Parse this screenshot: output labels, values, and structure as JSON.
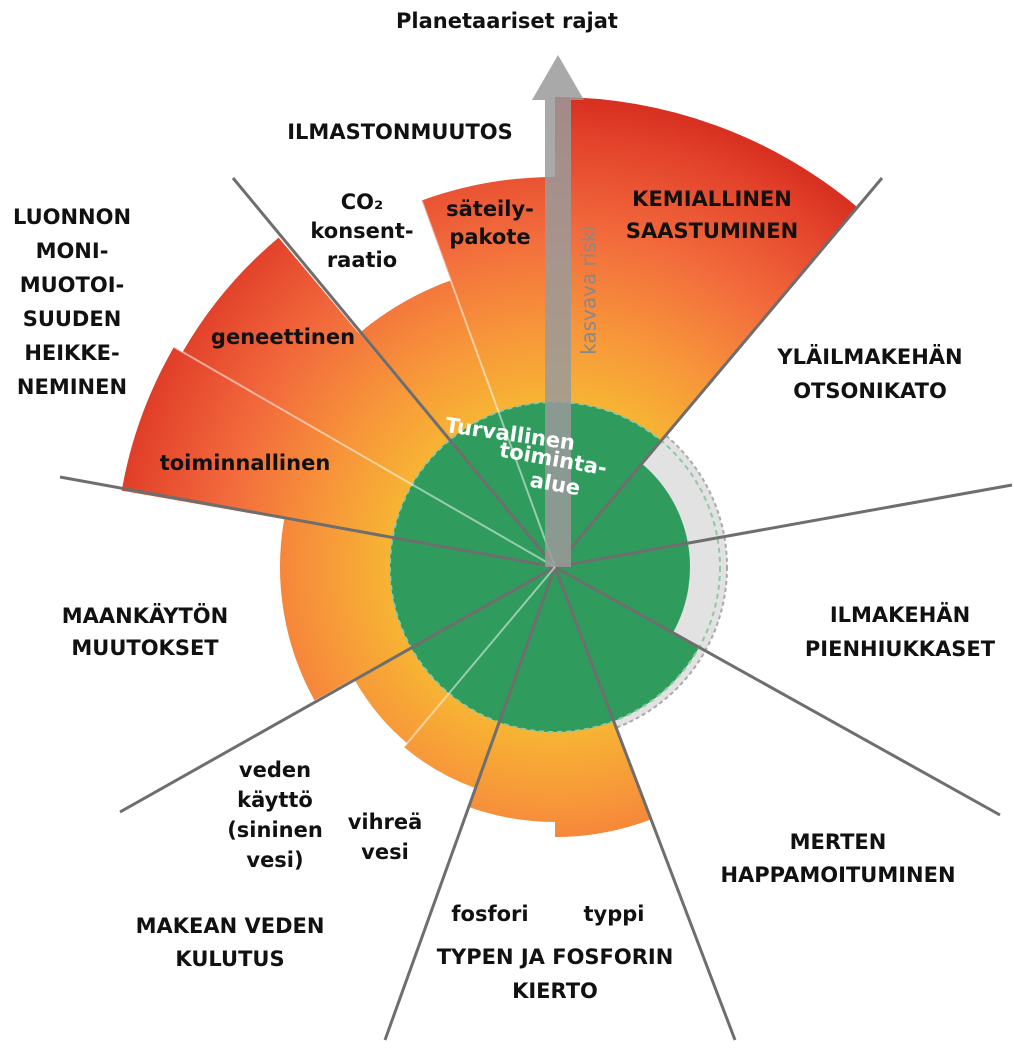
{
  "title": "Planetaariset rajat",
  "center_label": [
    "Turvallinen",
    "toiminta-",
    "alue"
  ],
  "arrow_label": "kasvava riski",
  "boundaries": [
    {
      "label": [
        "ILMASTONMUUTOS"
      ],
      "subs": [
        {
          "label": [
            "CO₂",
            "konsent-",
            "raatio"
          ]
        },
        {
          "label": [
            "säteily-",
            "pakote"
          ]
        }
      ]
    },
    {
      "label": [
        "KEMIALLINEN",
        "SAASTUMINEN"
      ]
    },
    {
      "label": [
        "YLÄILMAKEHÄN",
        "OTSONIKATO"
      ]
    },
    {
      "label": [
        "ILMAKEHÄN",
        "PIENHIUKKASET"
      ]
    },
    {
      "label": [
        "MERTEN",
        "HAPPAMOITUMINEN"
      ]
    },
    {
      "label": [
        "TYPEN JA FOSFORIN",
        "KIERTO"
      ],
      "subs": [
        {
          "label": [
            "fosfori"
          ]
        },
        {
          "label": [
            "typpi"
          ]
        }
      ]
    },
    {
      "label": [
        "MAKEAN VEDEN",
        "KULUTUS"
      ],
      "subs": [
        {
          "label": [
            "veden",
            "käyttö",
            "(sininen",
            "vesi)"
          ]
        },
        {
          "label": [
            "vihreä",
            "vesi"
          ]
        }
      ]
    },
    {
      "label": [
        "MAANKÄYTÖN",
        "MUUTOKSET"
      ]
    },
    {
      "label": [
        "LUONNON",
        "MONI-",
        "MUOTOI-",
        "SUUDEN",
        "HEIKKE-",
        "NEMINEN"
      ],
      "subs": [
        {
          "label": [
            "geneettinen"
          ]
        },
        {
          "label": [
            "toiminnallinen"
          ]
        }
      ]
    }
  ]
}
